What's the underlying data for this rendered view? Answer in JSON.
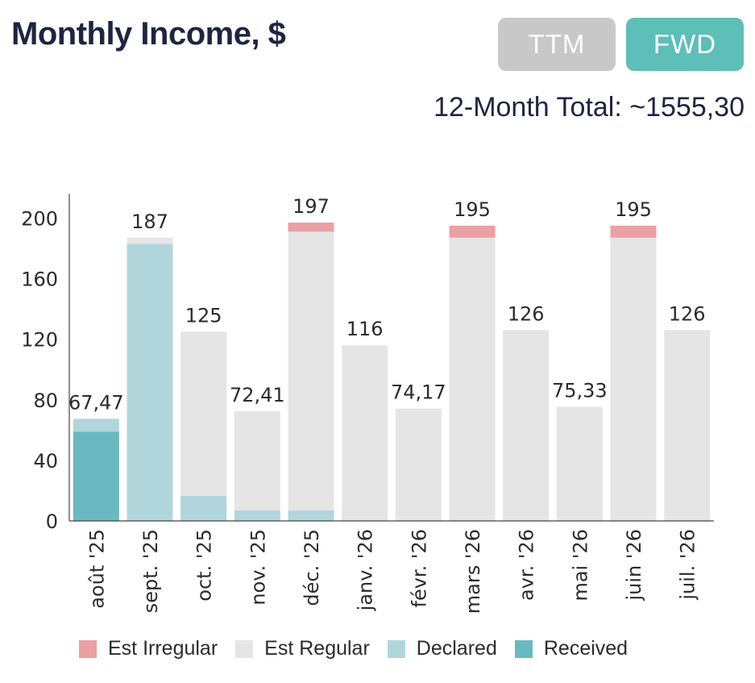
{
  "header": {
    "title": "Monthly Income, $",
    "total_text": "12-Month Total: ~1555,30"
  },
  "toggles": [
    {
      "label": "TTM",
      "active": false,
      "color": "#c8c8c8"
    },
    {
      "label": "FWD",
      "active": true,
      "color": "#5dbfb7"
    }
  ],
  "colors": {
    "est_irregular": "#eba0a3",
    "est_regular": "#e6e5e5",
    "declared": "#b0d6dc",
    "received": "#6ab9c1",
    "axis": "#444444",
    "text": "#2b2b2b"
  },
  "chart_data": {
    "type": "bar",
    "stacked": true,
    "categories": [
      "août '25",
      "sept. '25",
      "oct. '25",
      "nov. '25",
      "déc. '25",
      "janv. '26",
      "févr. '26",
      "mars '26",
      "avr. '26",
      "mai '26",
      "juin '26",
      "juil. '26"
    ],
    "totals_labels": [
      "67,47",
      "187",
      "125",
      "72,41",
      "197",
      "116",
      "74,17",
      "195",
      "126",
      "75,33",
      "195",
      "126"
    ],
    "series": [
      {
        "name": "Received",
        "key": "received",
        "values": [
          59,
          0,
          0,
          0,
          0,
          0,
          0,
          0,
          0,
          0,
          0,
          0
        ]
      },
      {
        "name": "Declared",
        "key": "declared",
        "values": [
          8.47,
          183,
          16.5,
          7,
          7,
          0,
          0,
          0,
          0,
          0,
          0,
          0
        ]
      },
      {
        "name": "Est Regular",
        "key": "est_regular",
        "values": [
          0,
          4,
          108.5,
          65.41,
          184,
          116,
          74.17,
          187,
          126,
          75.33,
          187,
          126
        ]
      },
      {
        "name": "Est Irregular",
        "key": "est_irregular",
        "values": [
          0,
          0,
          0,
          0,
          6,
          0,
          0,
          8,
          0,
          0,
          8,
          0
        ]
      }
    ],
    "yticks": [
      0,
      40,
      80,
      120,
      160,
      200
    ],
    "ylim": [
      0,
      216
    ],
    "xlabel": "",
    "ylabel": "",
    "legend_order": [
      "Est Irregular",
      "Est Regular",
      "Declared",
      "Received"
    ],
    "legend_keys": [
      "est_irregular",
      "est_regular",
      "declared",
      "received"
    ]
  }
}
